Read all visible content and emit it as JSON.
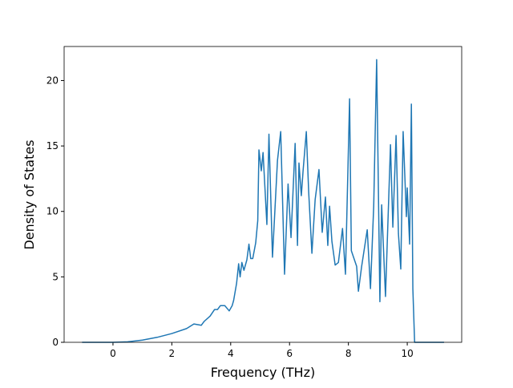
{
  "chart_data": {
    "type": "line",
    "xlabel": "Frequency (THz)",
    "ylabel": "Density of States",
    "x": [
      -1.05,
      0,
      0.5,
      1,
      1.5,
      2,
      2.5,
      2.75,
      3.0,
      3.1,
      3.3,
      3.45,
      3.55,
      3.65,
      3.8,
      3.95,
      4.05,
      4.1,
      4.2,
      4.27,
      4.32,
      4.38,
      4.45,
      4.55,
      4.62,
      4.68,
      4.75,
      4.85,
      4.92,
      4.96,
      5.04,
      5.1,
      5.23,
      5.3,
      5.42,
      5.59,
      5.7,
      5.83,
      5.95,
      6.05,
      6.19,
      6.27,
      6.32,
      6.4,
      6.46,
      6.57,
      6.65,
      6.76,
      6.87,
      7.0,
      7.11,
      7.22,
      7.3,
      7.36,
      7.44,
      7.55,
      7.66,
      7.8,
      7.9,
      8.04,
      8.1,
      8.28,
      8.34,
      8.45,
      8.64,
      8.75,
      8.86,
      8.96,
      9.07,
      9.13,
      9.26,
      9.43,
      9.51,
      9.62,
      9.7,
      9.78,
      9.86,
      9.97,
      10.0,
      10.08,
      10.14,
      10.19,
      10.25,
      11.25
    ],
    "series": [
      {
        "name": "DOS",
        "color": "#1f77b4",
        "values": [
          0,
          0,
          0.04,
          0.17,
          0.38,
          0.67,
          1.05,
          1.4,
          1.3,
          1.6,
          2.0,
          2.5,
          2.5,
          2.8,
          2.8,
          2.4,
          2.8,
          3.2,
          4.5,
          6.0,
          5.0,
          6.1,
          5.5,
          6.3,
          7.5,
          6.4,
          6.4,
          7.6,
          9.3,
          14.7,
          13.1,
          14.5,
          9.0,
          15.9,
          6.5,
          13.9,
          16.1,
          5.2,
          12.1,
          8.0,
          15.2,
          7.4,
          13.7,
          11.2,
          13.1,
          16.1,
          11.5,
          6.8,
          10.9,
          13.2,
          8.4,
          11.1,
          7.4,
          10.4,
          7.7,
          5.9,
          6.1,
          8.7,
          5.2,
          18.6,
          7.0,
          5.8,
          3.9,
          5.8,
          8.6,
          4.1,
          10.4,
          21.6,
          3.1,
          10.5,
          3.5,
          15.1,
          8.8,
          15.8,
          8.3,
          5.6,
          16.1,
          9.6,
          11.8,
          7.5,
          18.2,
          4.1,
          0,
          0
        ]
      }
    ],
    "xlim": [
      -1.66,
      11.85
    ],
    "xticks": [
      0,
      2,
      4,
      6,
      8,
      10
    ],
    "ylim": [
      0,
      22.6
    ],
    "yticks": [
      0,
      5,
      10,
      15,
      20
    ]
  }
}
